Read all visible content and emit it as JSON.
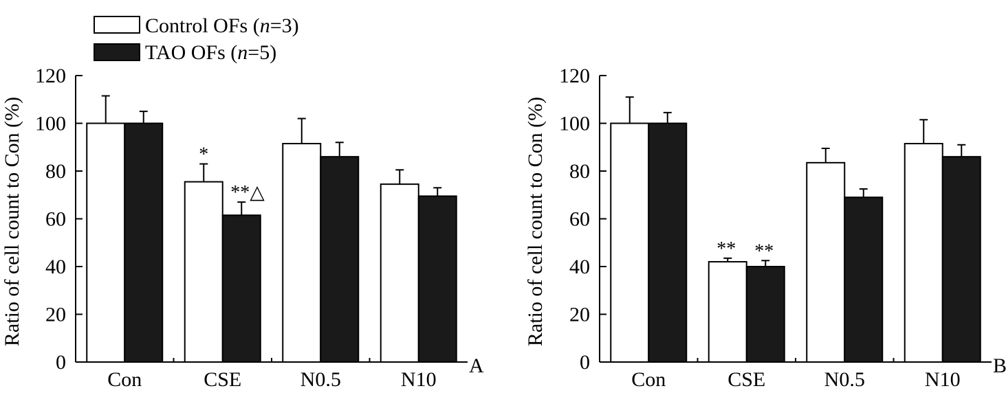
{
  "legend": {
    "items": [
      {
        "label": "Control OFs (",
        "italic": "n",
        "suffix": "=3)",
        "fill": "#ffffff"
      },
      {
        "label": "TAO OFs (",
        "italic": "n",
        "suffix": "=5)",
        "fill": "#1a1a1a"
      }
    ]
  },
  "colors": {
    "control": "#ffffff",
    "tao": "#1a1a1a",
    "stroke": "#000000"
  },
  "chart_data": [
    {
      "type": "bar",
      "panel": "A",
      "title": "",
      "xlabel": "",
      "ylabel": "Ratio of cell count to Con (%)",
      "ylim": [
        0,
        120
      ],
      "yticks": [
        0,
        20,
        40,
        60,
        80,
        100,
        120
      ],
      "categories": [
        "Con",
        "CSE",
        "N0.5",
        "N10"
      ],
      "series": [
        {
          "name": "Control OFs (n=3)",
          "values": [
            100,
            75.5,
            91.5,
            74.5
          ],
          "errors": [
            11.5,
            7.5,
            10.5,
            6
          ]
        },
        {
          "name": "TAO OFs (n=5)",
          "values": [
            100,
            61.5,
            86,
            69.5
          ],
          "errors": [
            5,
            5.5,
            6,
            3.5
          ]
        }
      ],
      "annotations": [
        {
          "category": 1,
          "series": 0,
          "text": "*"
        },
        {
          "category": 1,
          "series": 1,
          "text": "**△"
        }
      ]
    },
    {
      "type": "bar",
      "panel": "B",
      "title": "",
      "xlabel": "",
      "ylabel": "Ratio of cell count to Con (%)",
      "ylim": [
        0,
        120
      ],
      "yticks": [
        0,
        20,
        40,
        60,
        80,
        100,
        120
      ],
      "categories": [
        "Con",
        "CSE",
        "N0.5",
        "N10"
      ],
      "series": [
        {
          "name": "Control OFs (n=3)",
          "values": [
            100,
            42,
            83.5,
            91.5
          ],
          "errors": [
            11,
            1.5,
            6,
            10
          ]
        },
        {
          "name": "TAO OFs (n=5)",
          "values": [
            100,
            40,
            69,
            86
          ],
          "errors": [
            4.5,
            2.5,
            3.5,
            5
          ]
        }
      ],
      "annotations": [
        {
          "category": 1,
          "series": 0,
          "text": "**"
        },
        {
          "category": 1,
          "series": 1,
          "text": "**"
        }
      ]
    }
  ]
}
